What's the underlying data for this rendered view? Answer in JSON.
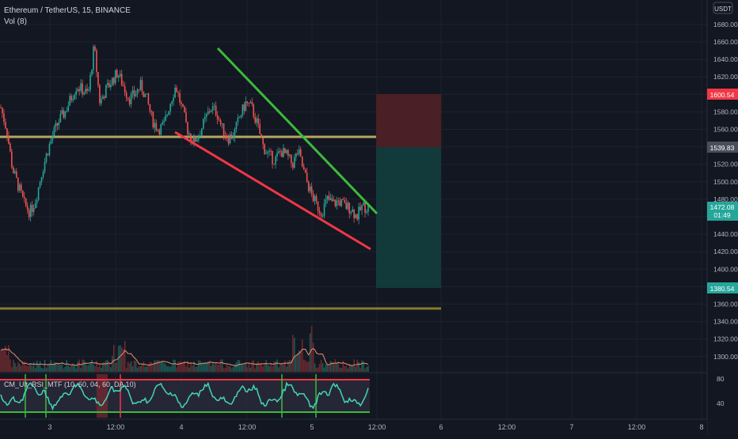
{
  "header": {
    "symbol_line": "Ethereum / TetherUS, 15, BINANCE",
    "volume_line": "Vol (8)"
  },
  "currency_badge": "USDT",
  "price_axis": {
    "ticks": [
      1680,
      1660,
      1640,
      1620,
      1600,
      1580,
      1560,
      1540,
      1520,
      1500,
      1480,
      1460,
      1440,
      1420,
      1400,
      1380,
      1360,
      1340,
      1320,
      1300
    ]
  },
  "price_labels": {
    "stop": "1600.54",
    "entry": "1539.83",
    "last_price": "1472.08",
    "countdown": "01:49",
    "target": "1380.54"
  },
  "rsi_axis": {
    "ticks": [
      "80",
      "40"
    ]
  },
  "indicator_label": "CM_Ult_RSI_MTF (10, 60, 04, 60, DA 10)",
  "time_axis": [
    {
      "label": "3",
      "x": 63
    },
    {
      "label": "12:00",
      "x": 146
    },
    {
      "label": "4",
      "x": 229
    },
    {
      "label": "12:00",
      "x": 312
    },
    {
      "label": "5",
      "x": 394
    },
    {
      "label": "12:00",
      "x": 476
    },
    {
      "label": "6",
      "x": 557
    },
    {
      "label": "12:00",
      "x": 640
    },
    {
      "label": "7",
      "x": 722
    },
    {
      "label": "12:00",
      "x": 804
    },
    {
      "label": "8",
      "x": 886
    }
  ],
  "colors": {
    "background": "#131722",
    "grid": "#1e2230",
    "bull": "#26a69a",
    "bear": "#ef5350",
    "trend_upper": "#3dba3b",
    "trend_lower": "#f23645",
    "support": "#b6a661",
    "rsi_line": "#42d6b8",
    "stop_zone": "#4a1f26",
    "target_zone": "#133a3b"
  },
  "chart_data": {
    "type": "candlestick",
    "price_range": [
      1290,
      1695
    ],
    "support_levels": [
      1550,
      1355
    ],
    "trendline_upper": [
      [
        1650,
        "top"
      ],
      [
        1467,
        "end"
      ]
    ],
    "trendline_lower": [
      [
        1549,
        "start"
      ],
      [
        1425,
        "end"
      ]
    ],
    "risk_reward": {
      "stop": 1600.54,
      "entry": 1539.83,
      "target": 1380.54
    },
    "price_path": [
      1585,
      1560,
      1515,
      1495,
      1475,
      1465,
      1480,
      1510,
      1535,
      1555,
      1570,
      1580,
      1595,
      1610,
      1605,
      1600,
      1655,
      1590,
      1605,
      1615,
      1625,
      1610,
      1595,
      1600,
      1610,
      1595,
      1570,
      1560,
      1565,
      1590,
      1610,
      1585,
      1560,
      1545,
      1555,
      1570,
      1585,
      1580,
      1560,
      1550,
      1555,
      1575,
      1590,
      1585,
      1565,
      1540,
      1530,
      1525,
      1535,
      1530,
      1520,
      1535,
      1510,
      1490,
      1475,
      1465,
      1480,
      1475,
      1478,
      1472,
      1470,
      1460,
      1472,
      1470
    ],
    "rsi_bounds": [
      84,
      20
    ]
  }
}
